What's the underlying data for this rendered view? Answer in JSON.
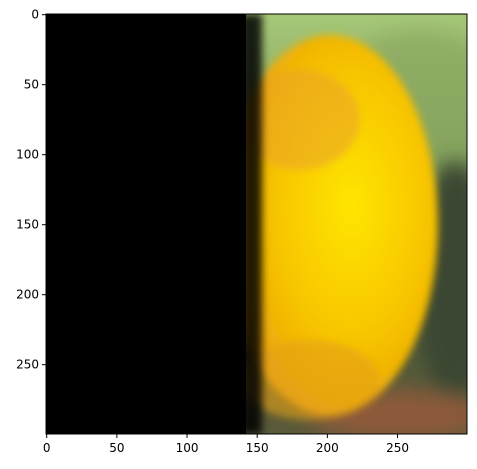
{
  "chart_data": {
    "type": "heatmap",
    "title": "",
    "xlabel": "",
    "ylabel": "",
    "xlim": [
      0,
      299
    ],
    "ylim": [
      299,
      0
    ],
    "x_ticks": [
      "0",
      "50",
      "100",
      "150",
      "200",
      "250"
    ],
    "y_ticks": [
      "0",
      "50",
      "100",
      "150",
      "200",
      "250"
    ],
    "x_tick_values": [
      0,
      50,
      100,
      150,
      200,
      250
    ],
    "y_tick_values": [
      0,
      50,
      100,
      150,
      200,
      250
    ],
    "image": {
      "description_regions": [
        {
          "region": "left-black-mask",
          "x_range": [
            0,
            148
          ],
          "color": "#000000"
        },
        {
          "region": "background-top-green",
          "color": "#9fc36f"
        },
        {
          "region": "background-right-dark-green",
          "color": "#3a4a30"
        },
        {
          "region": "object-yellow-orange",
          "center": [
            215,
            150
          ],
          "color": "#f2c100"
        }
      ]
    }
  }
}
